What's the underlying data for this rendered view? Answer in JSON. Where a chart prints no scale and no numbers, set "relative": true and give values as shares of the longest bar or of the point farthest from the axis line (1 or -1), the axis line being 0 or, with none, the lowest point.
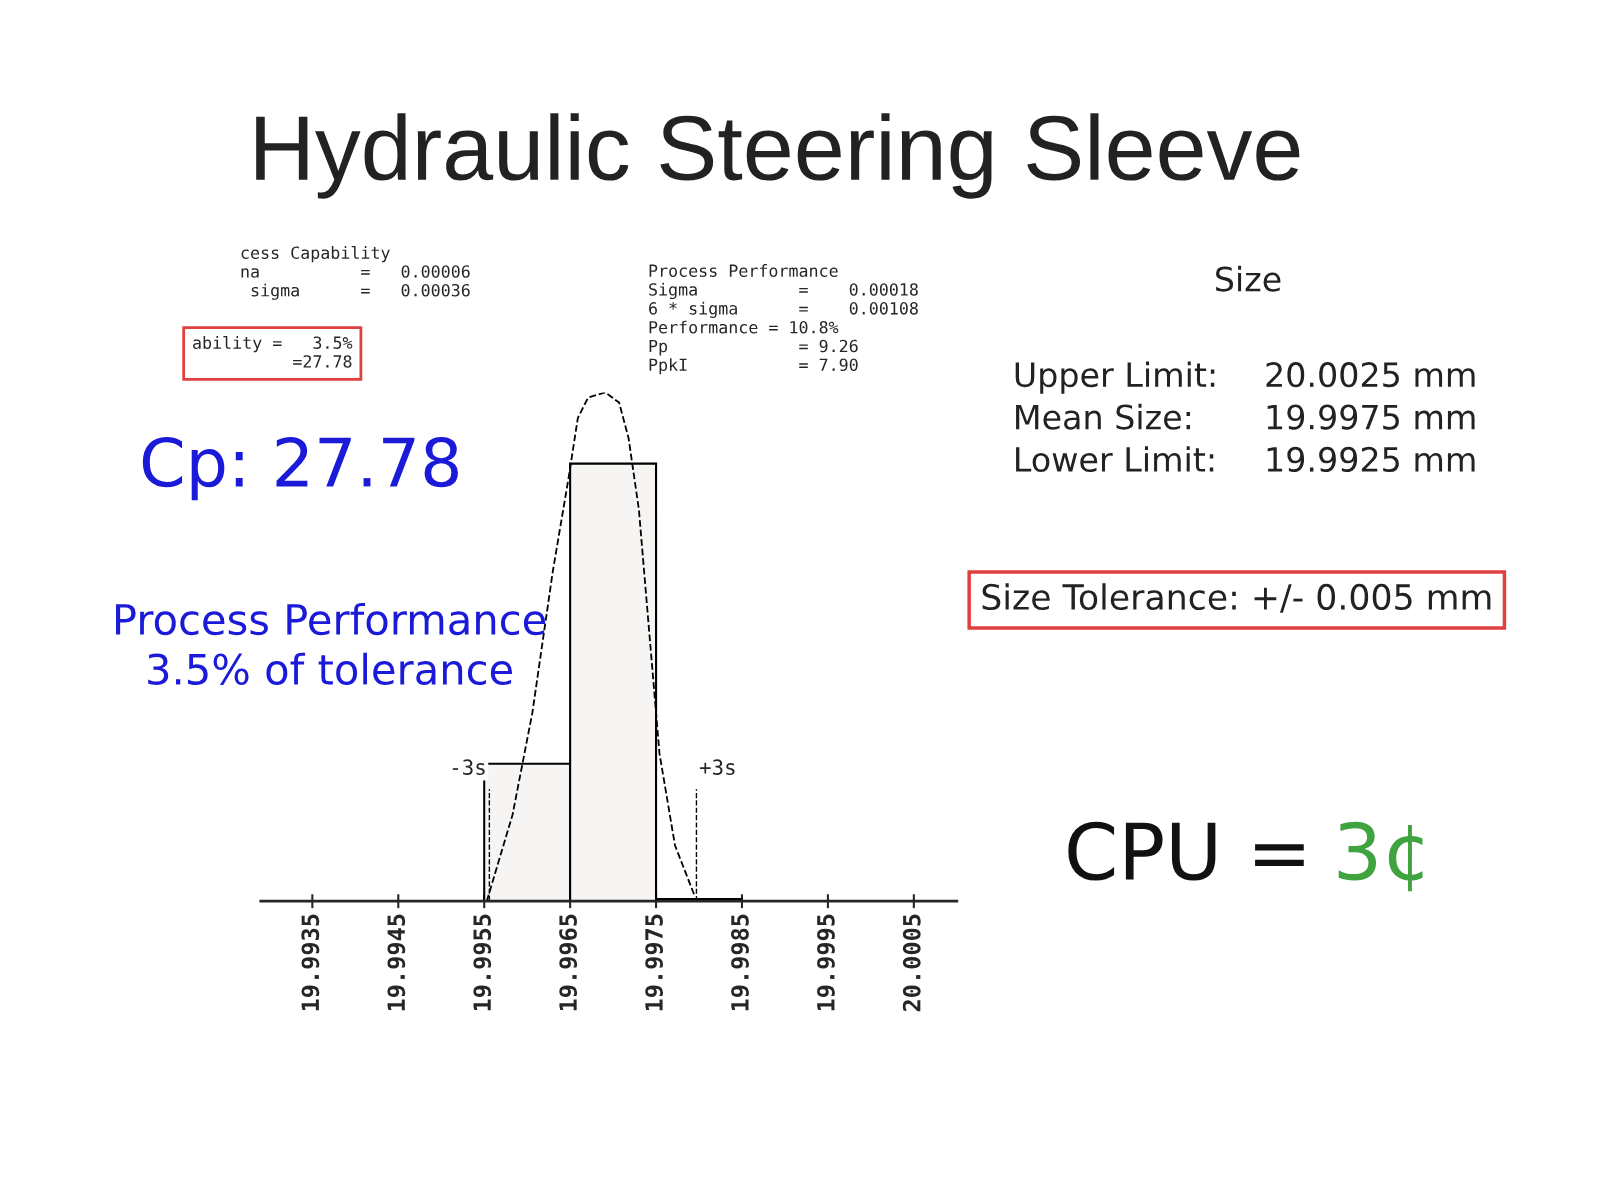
{
  "chart_data": {
    "type": "histogram",
    "title": "Hydraulic Steering Sleeve",
    "relative": true,
    "bins": [
      19.9955,
      19.9965,
      19.9975,
      19.9985
    ],
    "values": [
      0.27,
      0.86,
      0.004
    ],
    "color": "#f7f5f3",
    "series": [
      {
        "type": "line",
        "line_style": "dashed",
        "color": "#000000",
        "x": [
          19.99553,
          19.99583,
          19.99606,
          19.9963,
          19.99648,
          19.99659,
          19.99671,
          19.99691,
          19.99707,
          19.99718,
          19.9973,
          19.99742,
          19.99754,
          19.99772,
          19.99795
        ],
        "values": [
          0,
          0.17,
          0.37,
          0.65,
          0.83,
          0.95,
          0.99,
          1,
          0.98,
          0.91,
          0.77,
          0.53,
          0.29,
          0.11,
          0.01
        ]
      }
    ],
    "xlim": [
      19.9929,
      20.001
    ],
    "xticks": [
      19.9935,
      19.9945,
      19.9955,
      19.9965,
      19.9975,
      19.9985,
      19.9995,
      20.0005
    ],
    "ref_lines": [
      {
        "axis": "x",
        "value": 19.99556,
        "label": "-3s",
        "line_style": "dashed"
      },
      {
        "axis": "x",
        "value": 19.99797,
        "label": "+3s",
        "line_style": "dashed"
      }
    ],
    "grid": false,
    "legend": false,
    "tick_labels": "x",
    "annotations": [
      "cess Capability\nna          =   0.00006\n sigma      =   0.00036",
      "ability =   3.5%\n          =27.78",
      "Process Performance\nSigma          =    0.00018\n6 * sigma      =    0.00108\nPerformance = 10.8%\nPp             = 9.26\nPpkI           = 7.90",
      "Size",
      "Upper Limit:\nMean Size:\nLower Limit:",
      "20.0025 mm\n19.9975 mm\n19.9925 mm",
      "Cp: 27.78",
      "Process Performance\n3.5% of tolerance",
      "Size Tolerance: +/- 0.005 mm",
      "CPU =",
      "3¢"
    ]
  }
}
